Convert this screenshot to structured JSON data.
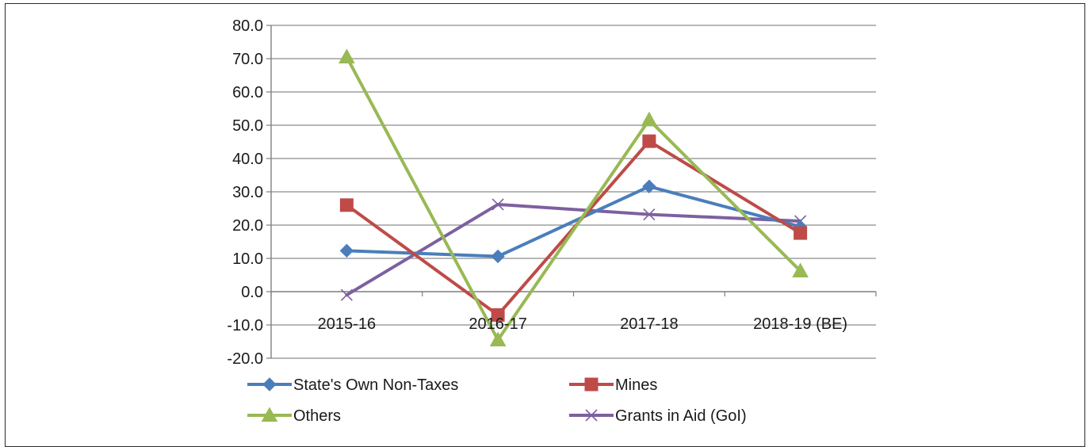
{
  "chart_data": {
    "type": "line",
    "categories": [
      "2015-16",
      "2016-17",
      "2017-18",
      "2018-19 (BE)"
    ],
    "ylim": [
      -20,
      80
    ],
    "yticks": [
      80,
      70,
      60,
      50,
      40,
      30,
      20,
      10,
      0,
      -10,
      -20
    ],
    "ytick_labels": [
      "80.0",
      "70.0",
      "60.0",
      "50.0",
      "40.0",
      "30.0",
      "20.0",
      "10.0",
      "0.0",
      "-10.0",
      "-20.0"
    ],
    "grid": true,
    "legend_position": "bottom",
    "series": [
      {
        "name": "State's Own Non-Taxes",
        "values": [
          12.3,
          10.6,
          31.6,
          19.5
        ],
        "color": "#4a7ebb",
        "marker": "diamond"
      },
      {
        "name": "Mines",
        "values": [
          26.0,
          -7.0,
          45.2,
          17.6
        ],
        "color": "#be4b48",
        "marker": "square"
      },
      {
        "name": "Others",
        "values": [
          70.5,
          -14.5,
          51.6,
          6.2
        ],
        "color": "#98b954",
        "marker": "triangle"
      },
      {
        "name": "Grants in Aid (GoI)",
        "values": [
          -1.0,
          26.2,
          23.2,
          21.2
        ],
        "color": "#7d60a0",
        "marker": "x"
      }
    ]
  }
}
